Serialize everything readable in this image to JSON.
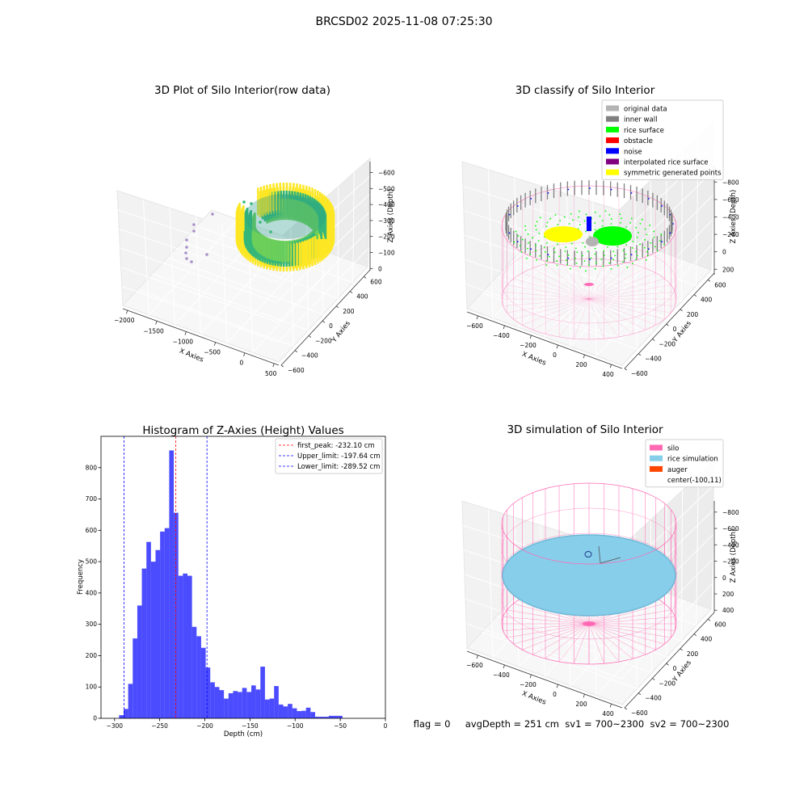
{
  "suptitle": "BRCSD02 2025-11-08 07:25:30",
  "status_line": "flag = 0     avgDepth = 251 cm  sv1 = 700~2300  sv2 = 700~2300",
  "chart_data": [
    {
      "type": "scatter",
      "title": "3D Plot of Silo Interior(row data)",
      "xlabel": "X Axies",
      "ylabel": "Y Axies",
      "zlabel": "Z Axies (Depth)",
      "x_ticks": [
        -2000,
        -1500,
        -1000,
        -500,
        0,
        500
      ],
      "y_ticks": [
        -600,
        -400,
        -200,
        0,
        200,
        400,
        600
      ],
      "z_ticks": [
        0,
        -100,
        -200,
        -300,
        -400,
        -500,
        -600
      ],
      "xlim": [
        -2200,
        600
      ],
      "ylim": [
        -650,
        650
      ],
      "zlim": [
        -650,
        30
      ],
      "colormap": [
        "#440154",
        "#31688e",
        "#35b779",
        "#fde725"
      ],
      "grid": true
    },
    {
      "type": "scatter",
      "title": "3D classify of Silo Interior",
      "xlabel": "X Axies",
      "ylabel": "Y Axies",
      "zlabel": "Z Axies (Depth)",
      "x_ticks": [
        -600,
        -400,
        -200,
        0,
        200,
        400
      ],
      "y_ticks": [
        -600,
        -400,
        -200,
        0,
        200,
        400,
        600
      ],
      "z_ticks": [
        200,
        0,
        -200,
        -400,
        -600,
        -800
      ],
      "legend_position": "top-right",
      "legend": [
        {
          "label": "original data",
          "color": "#b3b3b3"
        },
        {
          "label": "inner wall",
          "color": "#808080"
        },
        {
          "label": "rice surface",
          "color": "#00ff00"
        },
        {
          "label": "obstacle",
          "color": "#ff0000"
        },
        {
          "label": "noise",
          "color": "#0000ff"
        },
        {
          "label": "interpolated rice surface",
          "color": "#800080"
        },
        {
          "label": "symmetric generated points",
          "color": "#ffff00"
        }
      ],
      "silo_color": "#ff69b4",
      "grid": true
    },
    {
      "type": "bar",
      "title": "Histogram of Z-Axies (Height) Values",
      "xlabel": "Depth (cm)",
      "ylabel": "Frequency",
      "xlim": [
        -315,
        0
      ],
      "ylim": [
        0,
        900
      ],
      "x_ticks": [
        -300,
        -250,
        -200,
        -150,
        -100,
        -50,
        0
      ],
      "y_ticks": [
        0,
        100,
        200,
        300,
        400,
        500,
        600,
        700,
        800
      ],
      "bin_start": -295,
      "bin_width": 5.05,
      "bar_color": "#0000ff",
      "values": [
        10,
        30,
        110,
        255,
        360,
        478,
        563,
        500,
        537,
        596,
        607,
        855,
        656,
        455,
        462,
        455,
        292,
        262,
        225,
        162,
        115,
        100,
        90,
        63,
        80,
        87,
        84,
        97,
        84,
        105,
        92,
        165,
        60,
        63,
        103,
        44,
        38,
        46,
        32,
        23,
        24,
        34,
        20,
        5,
        5,
        5,
        8,
        8,
        8
      ],
      "vlines": [
        {
          "label": "first_peak: -232.10 cm",
          "x": -232.1,
          "color": "#ff0000"
        },
        {
          "label": "Upper_limit: -197.64 cm",
          "x": -197.64,
          "color": "#0000ff"
        },
        {
          "label": "Lower_limit: -289.52 cm",
          "x": -289.52,
          "color": "#0000ff"
        }
      ],
      "legend_position": "top-right",
      "grid": false
    },
    {
      "type": "scatter",
      "title": "3D simulation of Silo Interior",
      "xlabel": "X Axies",
      "ylabel": "Y Axies",
      "zlabel": "Z Axies (Depth)",
      "x_ticks": [
        -600,
        -400,
        -200,
        0,
        200,
        400
      ],
      "y_ticks": [
        -600,
        -400,
        -200,
        0,
        200,
        400,
        600
      ],
      "z_ticks": [
        400,
        200,
        0,
        -200,
        -400,
        -600,
        -800
      ],
      "legend_position": "top-right",
      "legend": [
        {
          "label": "silo",
          "color": "#ff69b4"
        },
        {
          "label": "rice simulation",
          "color": "#87ceeb"
        },
        {
          "label": "auger",
          "color": "#ff4500"
        },
        {
          "label": "center(-100,11)",
          "color": ""
        }
      ],
      "grid": true
    }
  ]
}
